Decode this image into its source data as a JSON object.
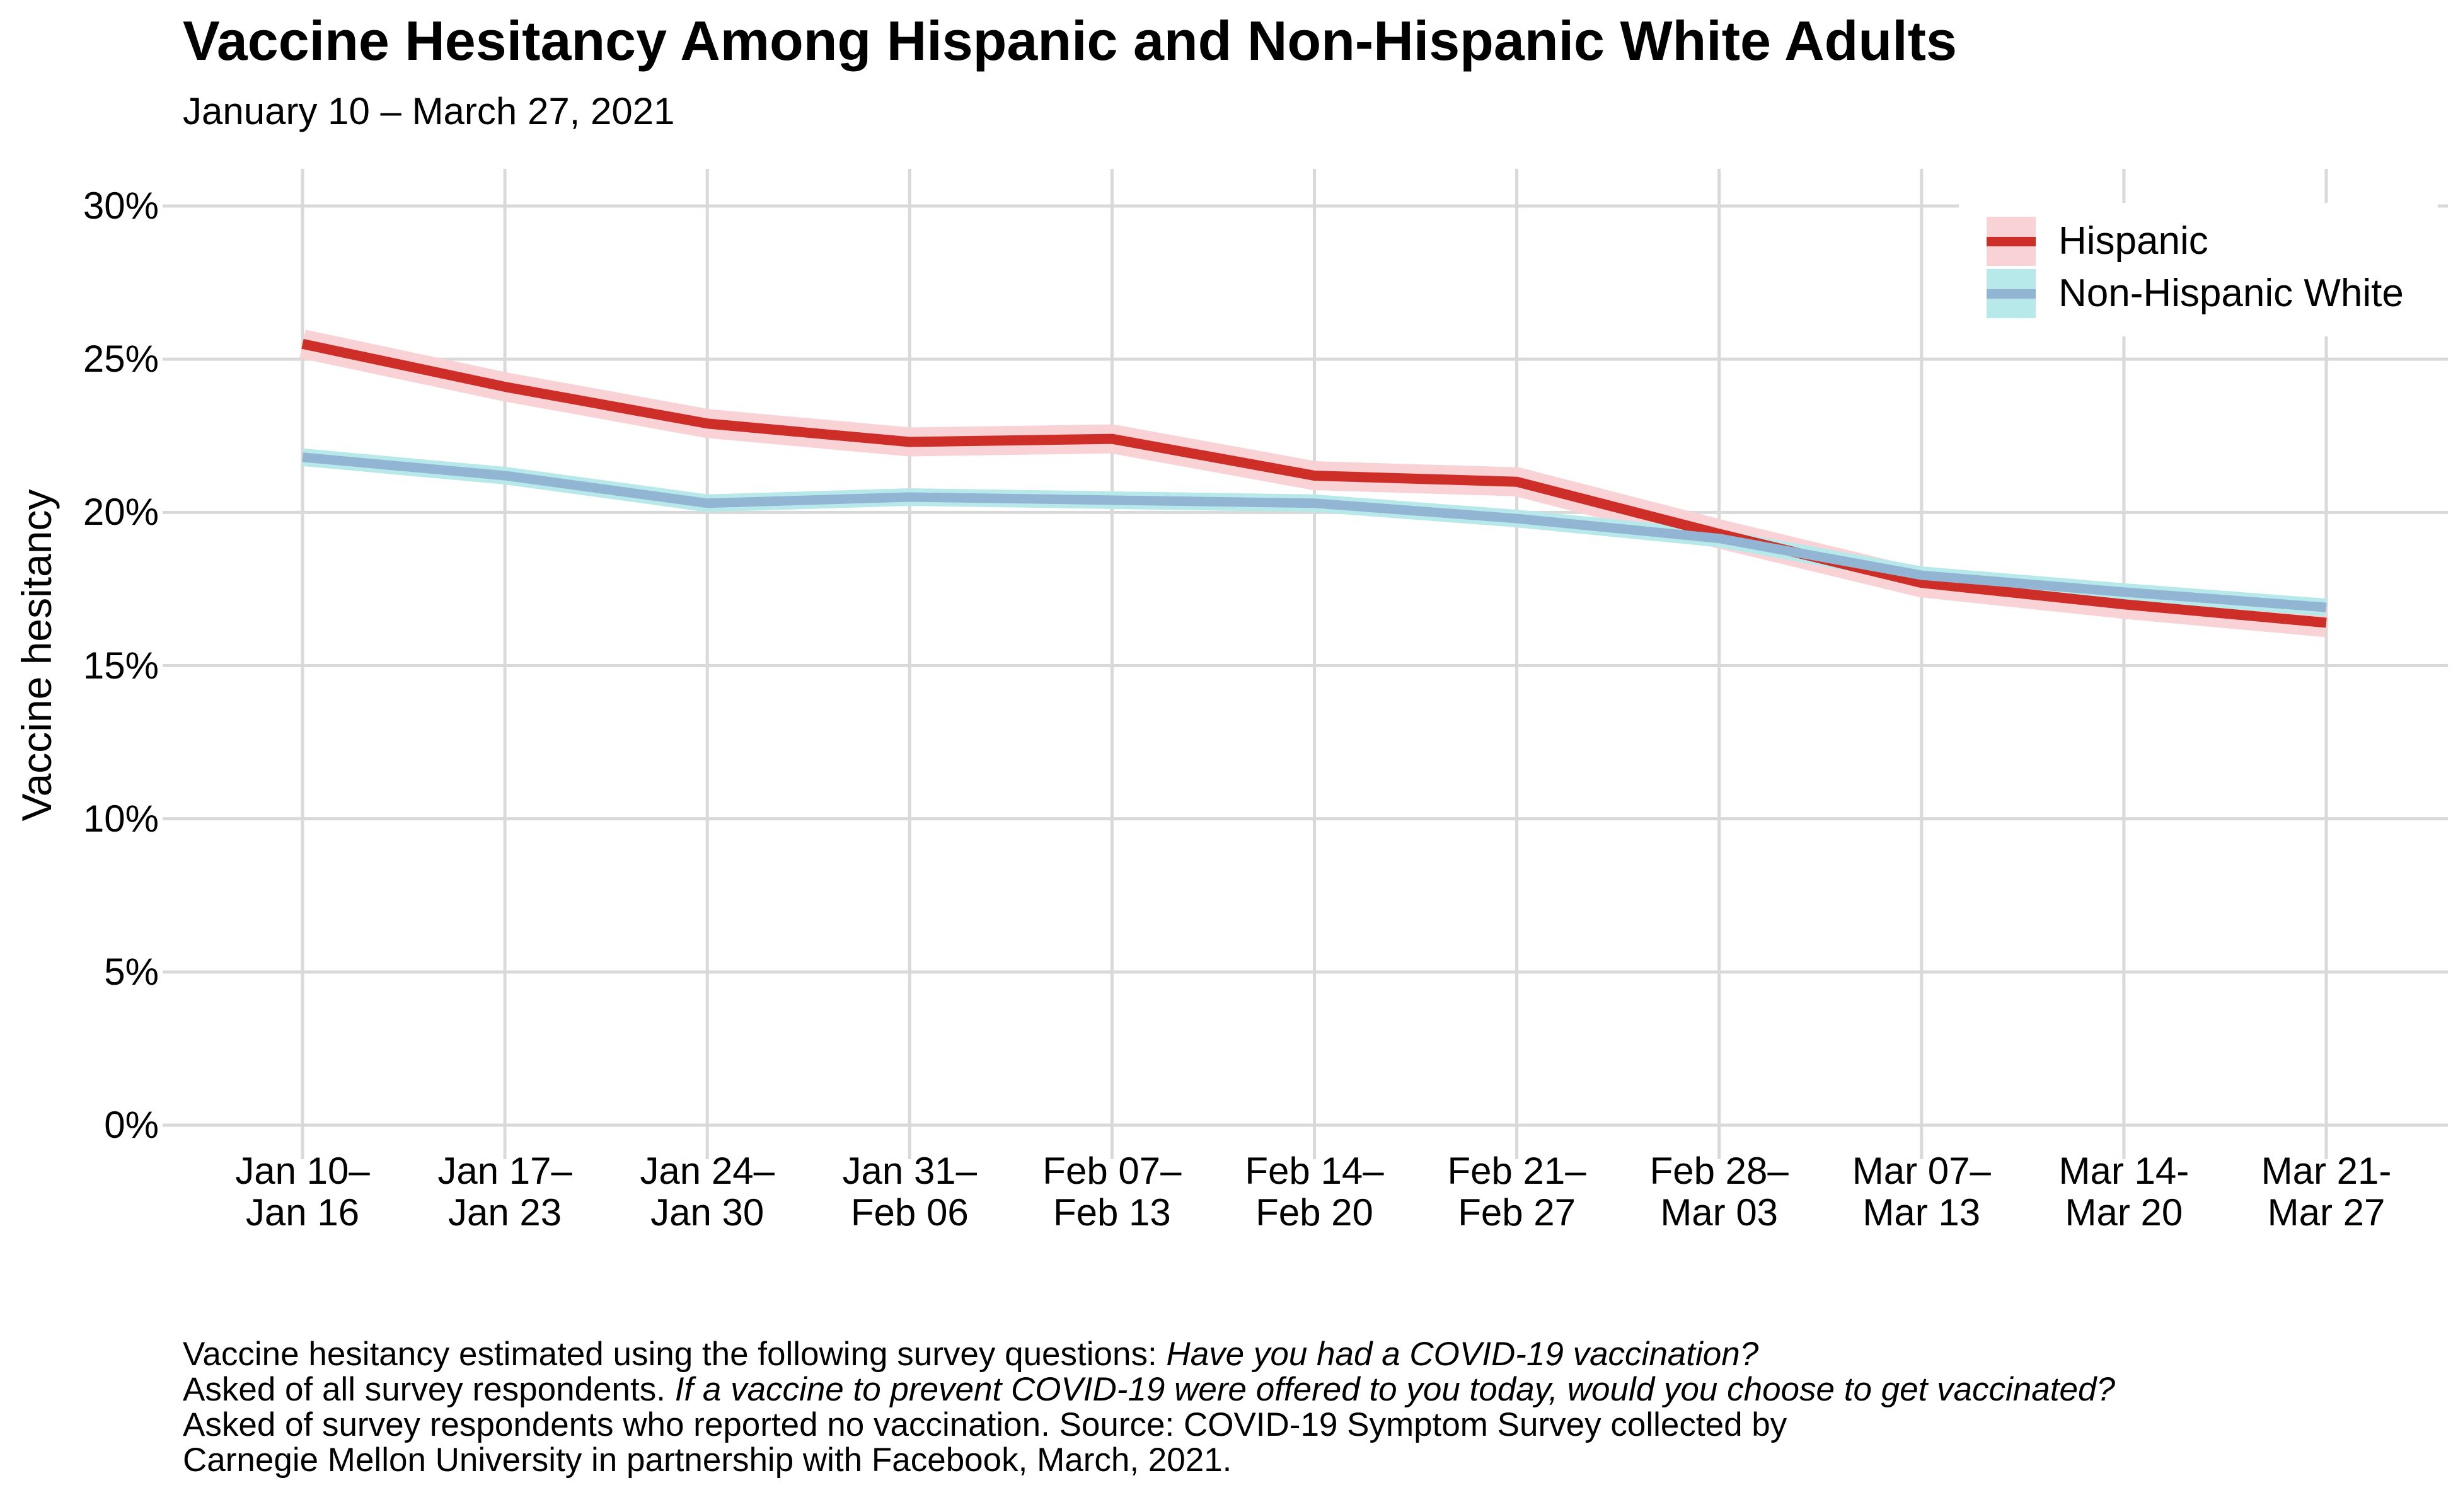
{
  "title": "Vaccine Hesitancy Among Hispanic and Non-Hispanic White Adults",
  "subtitle": "January 10 – March 27, 2021",
  "chart_data": {
    "type": "line",
    "title": "Vaccine Hesitancy Among Hispanic and Non-Hispanic White Adults",
    "subtitle": "January 10 – March 27, 2021",
    "ylabel": "Vaccine hesitancy",
    "ylim": [
      0,
      30
    ],
    "ytick_labels": [
      "0%",
      "5%",
      "10%",
      "15%",
      "20%",
      "25%",
      "30%"
    ],
    "ytick_values": [
      0,
      5,
      10,
      15,
      20,
      25,
      30
    ],
    "grid": true,
    "grid_color": "#d9d9d9",
    "legend_position": "top-right",
    "categories": [
      {
        "line1": "Jan 10–",
        "line2": "Jan 16"
      },
      {
        "line1": "Jan 17–",
        "line2": "Jan 23"
      },
      {
        "line1": "Jan 24–",
        "line2": "Jan 30"
      },
      {
        "line1": "Jan 31–",
        "line2": "Feb 06"
      },
      {
        "line1": "Feb 07–",
        "line2": "Feb 13"
      },
      {
        "line1": "Feb 14–",
        "line2": "Feb 20"
      },
      {
        "line1": "Feb 21–",
        "line2": "Feb 27"
      },
      {
        "line1": "Feb 28–",
        "line2": "Mar 03"
      },
      {
        "line1": "Mar 07–",
        "line2": "Mar 13"
      },
      {
        "line1": "Mar 14-",
        "line2": "Mar 20"
      },
      {
        "line1": "Mar 21-",
        "line2": "Mar 27"
      }
    ],
    "series": [
      {
        "name": "Hispanic",
        "color": "#cd2e28",
        "band_color": "#f9d2d5",
        "values": [
          25.5,
          24.1,
          22.9,
          22.3,
          22.4,
          21.2,
          21.0,
          19.3,
          17.7,
          17.0,
          16.4
        ]
      },
      {
        "name": "Non-Hispanic White",
        "color": "#92b5d3",
        "band_color": "#b8e9ea",
        "values": [
          21.8,
          21.2,
          20.3,
          20.5,
          20.4,
          20.3,
          19.8,
          19.15,
          17.95,
          17.4,
          16.9
        ]
      }
    ]
  },
  "footnote": {
    "lines": [
      {
        "normal": "Vaccine hesitancy estimated using the following survey questions: ",
        "italic": "Have you had a COVID-19 vaccination?"
      },
      {
        "normal": "Asked of all survey respondents. ",
        "italic": "If a vaccine to prevent COVID-19 were offered to you today, would you choose to get vaccinated?"
      },
      {
        "normal": "Asked of survey respondents who reported no vaccination. Source: COVID-19 Symptom Survey collected by",
        "italic": ""
      },
      {
        "normal": "Carnegie Mellon University in partnership with Facebook, March, 2021.",
        "italic": ""
      }
    ]
  }
}
